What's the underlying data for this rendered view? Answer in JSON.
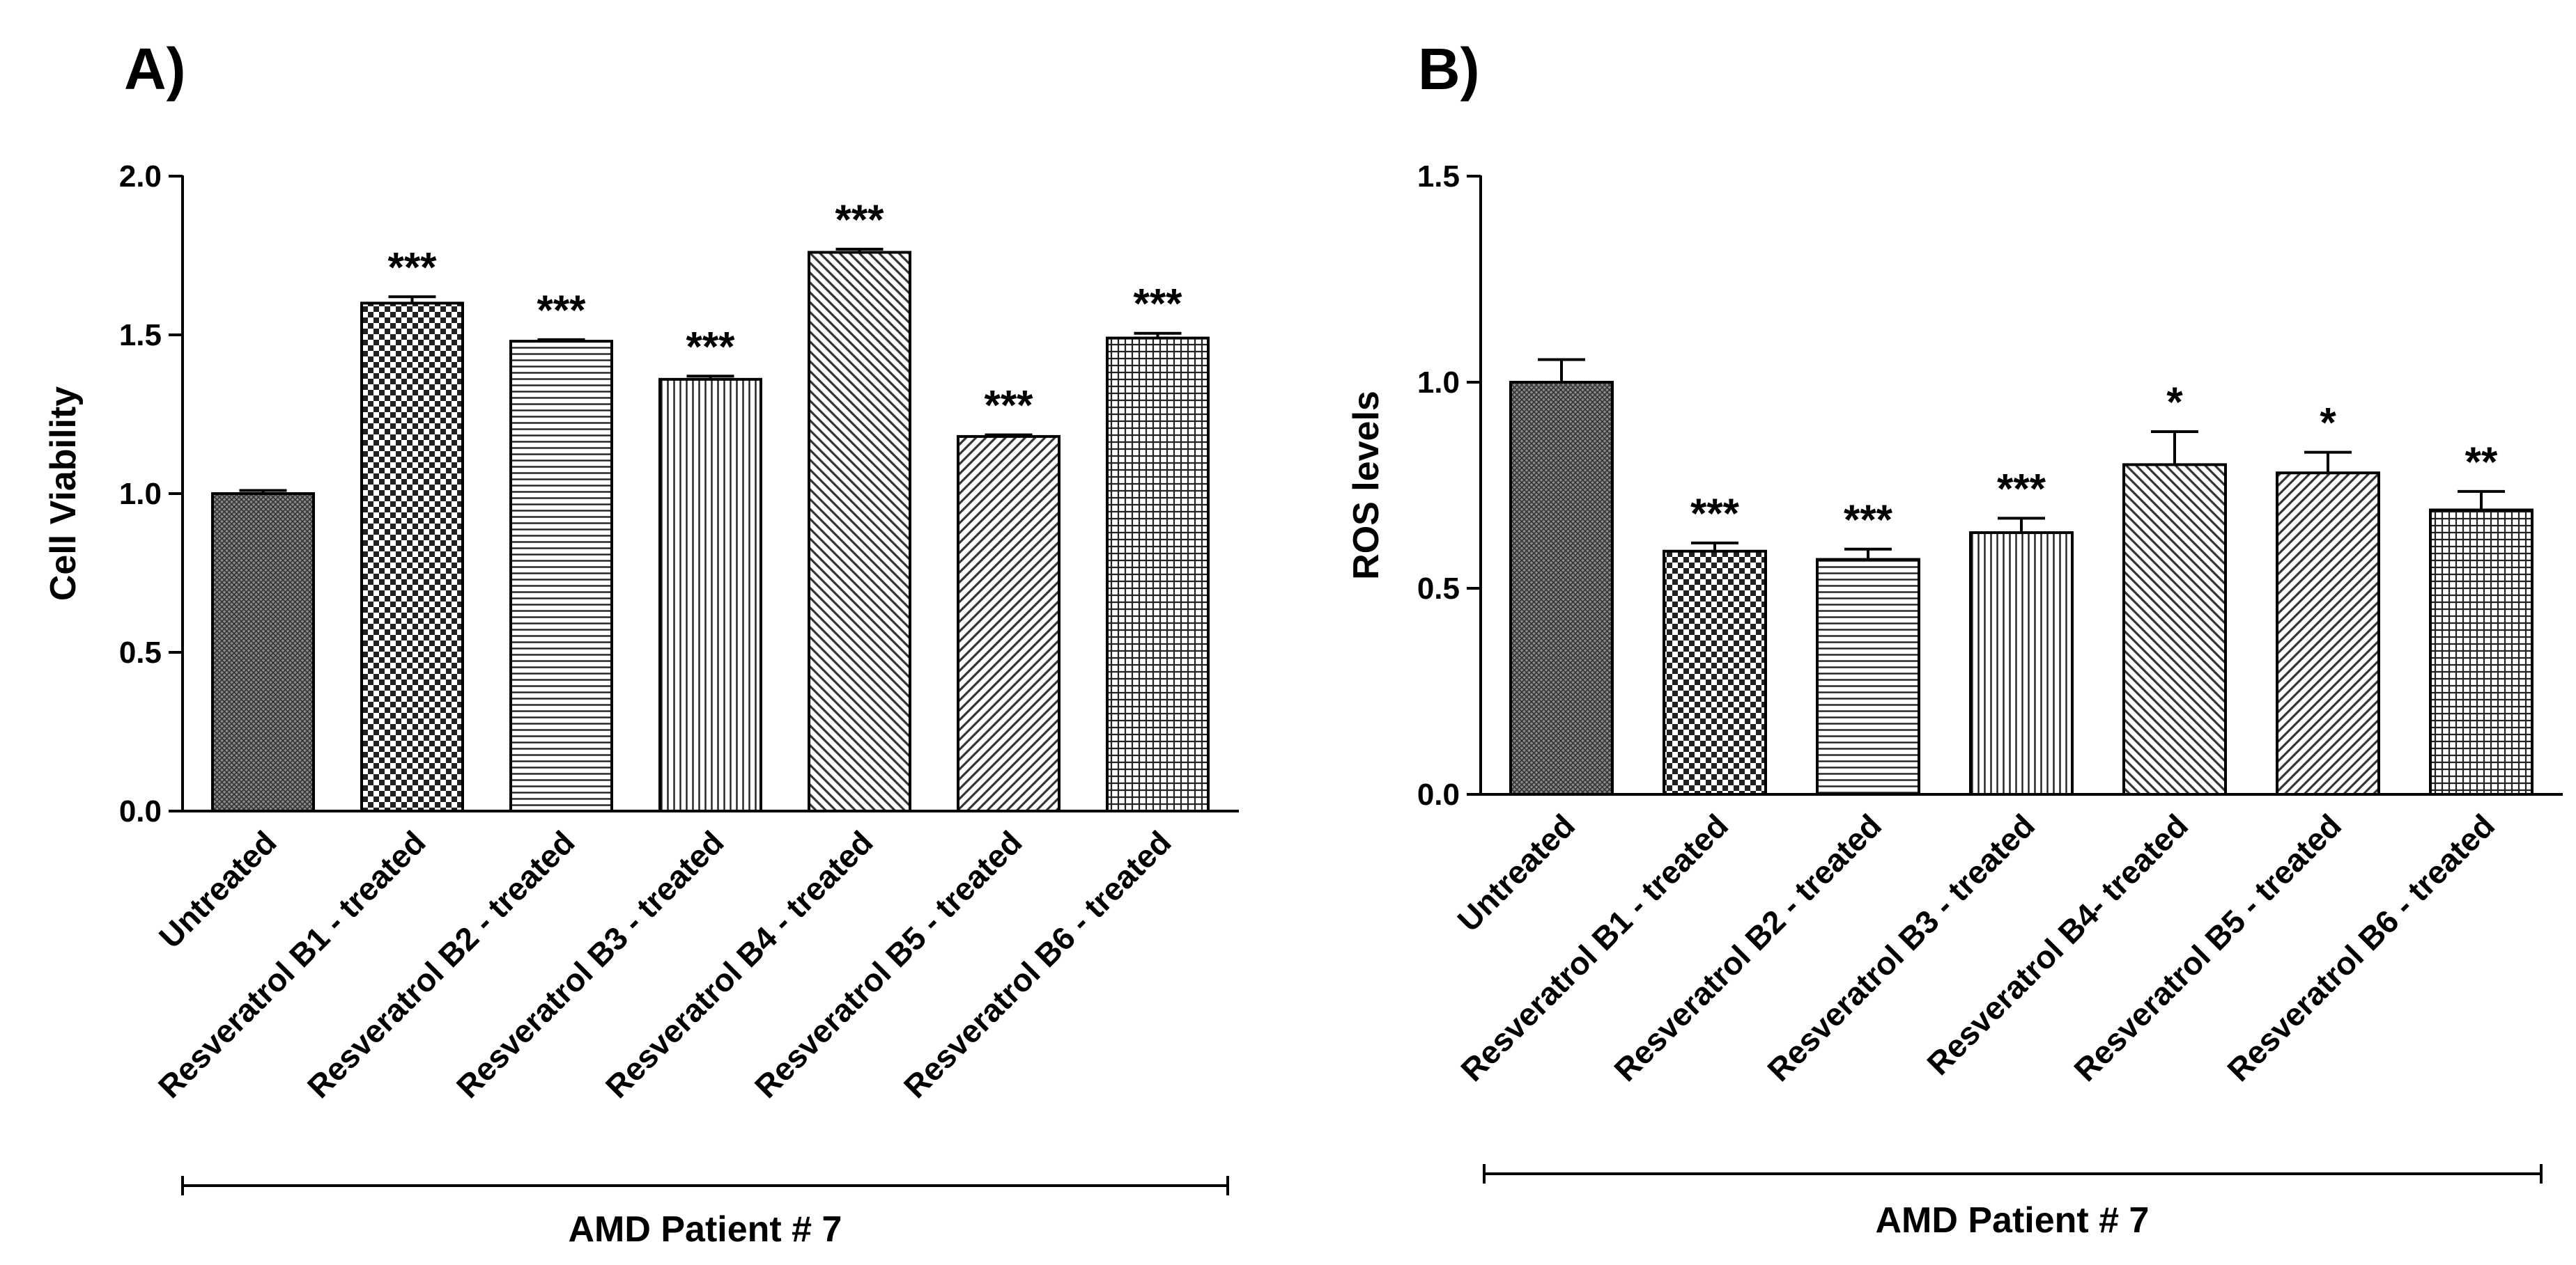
{
  "chart_data": [
    {
      "type": "bar",
      "panel": "A)",
      "ylabel": "Cell Viability",
      "ylim": [
        0,
        2.0
      ],
      "yticks": [
        "0.0",
        "0.5",
        "1.0",
        "1.5",
        "2.0"
      ],
      "ytick_values": [
        0,
        0.5,
        1.0,
        1.5,
        2.0
      ],
      "categories": [
        "Untreated",
        "Resveratrol B1 - treated",
        "Resveratrol B2 - treated",
        "Resveratrol B3 - treated",
        "Resveratrol B4 - treated",
        "Resveratrol B5 - treated",
        "Resveratrol B6 - treated"
      ],
      "values": [
        1.0,
        1.6,
        1.48,
        1.36,
        1.76,
        1.18,
        1.49
      ],
      "errors": [
        0.01,
        0.02,
        0.005,
        0.01,
        0.01,
        0.005,
        0.015
      ],
      "significance": [
        "",
        "***",
        "***",
        "***",
        "***",
        "***",
        "***"
      ],
      "group_label": "AMD Patient # 7",
      "patterns": [
        "dense",
        "check",
        "hlines",
        "vlines",
        "diag-right",
        "diag-left",
        "grid"
      ]
    },
    {
      "type": "bar",
      "panel": "B)",
      "ylabel": "ROS levels",
      "ylim": [
        0,
        1.5
      ],
      "yticks": [
        "0.0",
        "0.5",
        "1.0",
        "1.5"
      ],
      "ytick_values": [
        0,
        0.5,
        1.0,
        1.5
      ],
      "categories": [
        "Untreated",
        "Resveratrol B1 - treated",
        "Resveratrol B2 - treated",
        "Resveratrol B3 - treated",
        "Resveratrol B4- treated",
        "Resveratrol B5 - treated",
        "Resveratrol B6 - treated"
      ],
      "values": [
        1.0,
        0.59,
        0.57,
        0.635,
        0.8,
        0.78,
        0.69
      ],
      "errors": [
        0.055,
        0.02,
        0.025,
        0.035,
        0.08,
        0.05,
        0.045
      ],
      "significance": [
        "",
        "***",
        "***",
        "***",
        "*",
        "*",
        "**"
      ],
      "group_label": "AMD Patient # 7",
      "patterns": [
        "dense",
        "check",
        "hlines",
        "vlines",
        "diag-right",
        "diag-left",
        "grid"
      ]
    }
  ]
}
